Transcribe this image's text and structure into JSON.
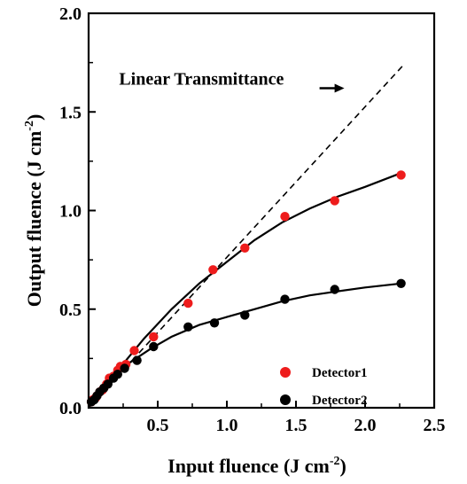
{
  "chart_data": {
    "type": "scatter",
    "title": "",
    "xlabel": "Input fluence (J cm",
    "xlabel_sup": "-2",
    "xlabel_end": ")",
    "ylabel": "Output fluence (J cm",
    "ylabel_sup": "-2",
    "ylabel_end": ")",
    "xlim": [
      0.0,
      2.5
    ],
    "ylim": [
      0.0,
      2.0
    ],
    "x_ticks": [
      0.5,
      1.0,
      1.5,
      2.0,
      2.5
    ],
    "x_tick_labels": [
      "0.5",
      "1.0",
      "1.5",
      "2.0",
      "2.5"
    ],
    "y_ticks": [
      0.0,
      0.5,
      1.0,
      1.5,
      2.0
    ],
    "y_tick_labels": [
      "0.0",
      "0.5",
      "1.0",
      "1.5",
      "2.0"
    ],
    "grid": false,
    "legend_position": "bottom-right",
    "series": [
      {
        "name": "Detector1",
        "color": "#ee1c1c",
        "marker": "circle",
        "x": [
          0.02,
          0.03,
          0.05,
          0.06,
          0.08,
          0.1,
          0.11,
          0.13,
          0.15,
          0.18,
          0.21,
          0.23,
          0.27,
          0.33,
          0.47,
          0.72,
          0.9,
          1.13,
          1.42,
          1.78,
          2.26
        ],
        "y": [
          0.03,
          0.04,
          0.05,
          0.06,
          0.08,
          0.09,
          0.1,
          0.12,
          0.15,
          0.16,
          0.19,
          0.21,
          0.22,
          0.29,
          0.36,
          0.53,
          0.7,
          0.81,
          0.97,
          1.05,
          1.18
        ]
      },
      {
        "name": "Detector2",
        "color": "#000000",
        "marker": "circle",
        "x": [
          0.02,
          0.04,
          0.06,
          0.08,
          0.11,
          0.14,
          0.18,
          0.21,
          0.26,
          0.35,
          0.47,
          0.72,
          0.91,
          1.13,
          1.42,
          1.78,
          2.26
        ],
        "y": [
          0.03,
          0.04,
          0.06,
          0.08,
          0.1,
          0.12,
          0.15,
          0.17,
          0.2,
          0.24,
          0.31,
          0.41,
          0.43,
          0.47,
          0.55,
          0.6,
          0.63
        ]
      }
    ],
    "lines": [
      {
        "name": "",
        "style": "solid",
        "x": [
          0.0,
          0.2,
          0.4,
          0.6,
          0.8,
          1.0,
          1.2,
          1.4,
          1.6,
          1.8,
          2.0,
          2.26
        ],
        "y": [
          0.0,
          0.18,
          0.35,
          0.5,
          0.63,
          0.74,
          0.85,
          0.94,
          1.01,
          1.07,
          1.12,
          1.19
        ]
      },
      {
        "name": "",
        "style": "solid",
        "x": [
          0.0,
          0.1,
          0.2,
          0.3,
          0.45,
          0.6,
          0.8,
          1.0,
          1.2,
          1.4,
          1.6,
          1.8,
          2.0,
          2.26
        ],
        "y": [
          0.0,
          0.09,
          0.17,
          0.23,
          0.3,
          0.36,
          0.42,
          0.46,
          0.5,
          0.54,
          0.57,
          0.59,
          0.61,
          0.63
        ]
      },
      {
        "name": "Linear Transmittance",
        "style": "dashed",
        "x": [
          0.0,
          2.28
        ],
        "y": [
          0.0,
          1.74
        ]
      }
    ],
    "annotations": [
      {
        "text": "Linear Transmittance",
        "x": 0.22,
        "y": 1.67,
        "arrow_to": [
          1.85,
          1.62
        ]
      }
    ]
  }
}
